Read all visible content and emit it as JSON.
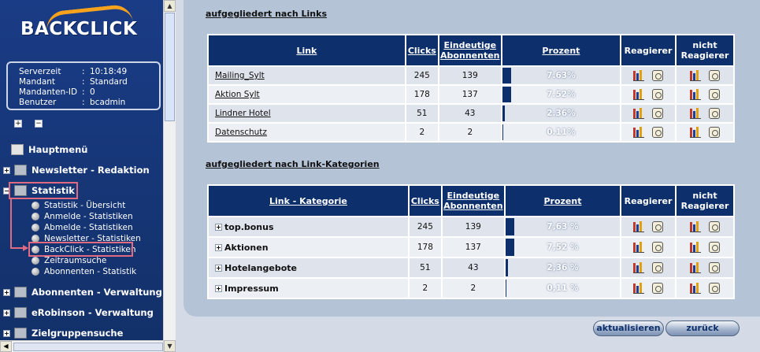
{
  "sidebar": {
    "logo_text": "BACKCLICK",
    "info": [
      {
        "key": "Serverzeit",
        "value": "10:18:49"
      },
      {
        "key": "Mandant",
        "value": "Standard"
      },
      {
        "key": "Mandanten-ID",
        "value": "0"
      },
      {
        "key": "Benutzer",
        "value": "bcadmin"
      }
    ],
    "info_sep": ":",
    "expand_all": "+",
    "collapse_all": "−",
    "nav": {
      "home": "Hauptmenü",
      "newsletter": "Newsletter - Redaktion",
      "statistik": "Statistik",
      "abonnenten": "Abonnenten - Verwaltung",
      "erobinson": "eRobinson - Verwaltung",
      "zielgruppen": "Zielgruppensuche"
    },
    "stat_items": [
      "Statistik - Übersicht",
      "Anmelde - Statistiken",
      "Abmelde - Statistiken",
      "Newsletter - Statistiken",
      "BackClick - Statistiken",
      "Zeitraumsuche",
      "Abonnenten - Statistik"
    ],
    "plus": "+",
    "minus": "−"
  },
  "section1": {
    "title": "aufgegliedert nach Links",
    "headers": {
      "link": "Link",
      "clicks": "Clicks",
      "unique": "Eindeutige Abonnenten",
      "percent": "Prozent",
      "react": "Reagierer",
      "nonreact": "nicht Reagierer"
    },
    "rows": [
      {
        "name": "Mailing_Sylt",
        "clicks": "245",
        "unique": "139",
        "percent": "7.63%",
        "share": 0.0763
      },
      {
        "name": "Aktion Sylt",
        "clicks": "178",
        "unique": "137",
        "percent": "7.52%",
        "share": 0.0752
      },
      {
        "name": "Lindner Hotel",
        "clicks": "51",
        "unique": "43",
        "percent": "2.36%",
        "share": 0.0236
      },
      {
        "name": "Datenschutz",
        "clicks": "2",
        "unique": "2",
        "percent": "0.11%",
        "share": 0.0011
      }
    ]
  },
  "section2": {
    "title": "aufgegliedert nach Link-Kategorien",
    "headers": {
      "link": "Link - Kategorie",
      "clicks": "Clicks",
      "unique": "Eindeutige Abonnenten",
      "percent": "Prozent",
      "react": "Reagierer",
      "nonreact": "nicht Reagierer"
    },
    "rows": [
      {
        "name": "top.bonus",
        "clicks": "245",
        "unique": "139",
        "percent": "7,63 %",
        "share": 0.0763
      },
      {
        "name": "Aktionen",
        "clicks": "178",
        "unique": "137",
        "percent": "7,52 %",
        "share": 0.0752
      },
      {
        "name": "Hotelangebote",
        "clicks": "51",
        "unique": "43",
        "percent": "2,36 %",
        "share": 0.0236
      },
      {
        "name": "Impressum",
        "clicks": "2",
        "unique": "2",
        "percent": "0,11 %",
        "share": 0.0011
      }
    ]
  },
  "buttons": {
    "refresh": "aktualisieren",
    "back": "zurück"
  },
  "colors": {
    "header": "#0d2f6c",
    "sidebar": "#1a3c86",
    "highlight": "#e06a80",
    "panel": "#b5c3d6"
  },
  "icons": {
    "react": "bar-chart-icon",
    "view": "document-face-icon"
  }
}
